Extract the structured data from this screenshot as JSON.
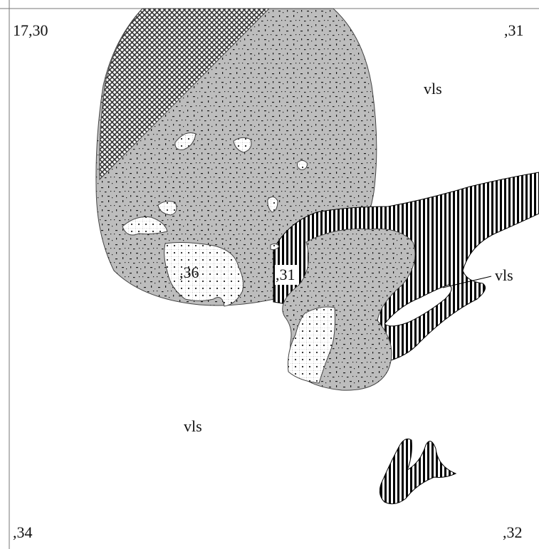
{
  "map": {
    "corner_labels": {
      "top_left": "17,30",
      "top_right": ",31",
      "bottom_left": ",34",
      "bottom_right": ",32"
    },
    "area_labels": {
      "vls_upper_right": "vls",
      "vls_right_callout": "vls",
      "vls_lower_left": "vls",
      "patch_36": ",36",
      "patch_31": ",31"
    },
    "pattern_colors": {
      "stipple_fill": "#bdbdbd",
      "stipple_dots": "#1a1a1a",
      "crosshatch_fill": "#8a8a8a",
      "stripes": "#000000",
      "grid_cells": "#ffffff",
      "border": "#555555"
    }
  }
}
